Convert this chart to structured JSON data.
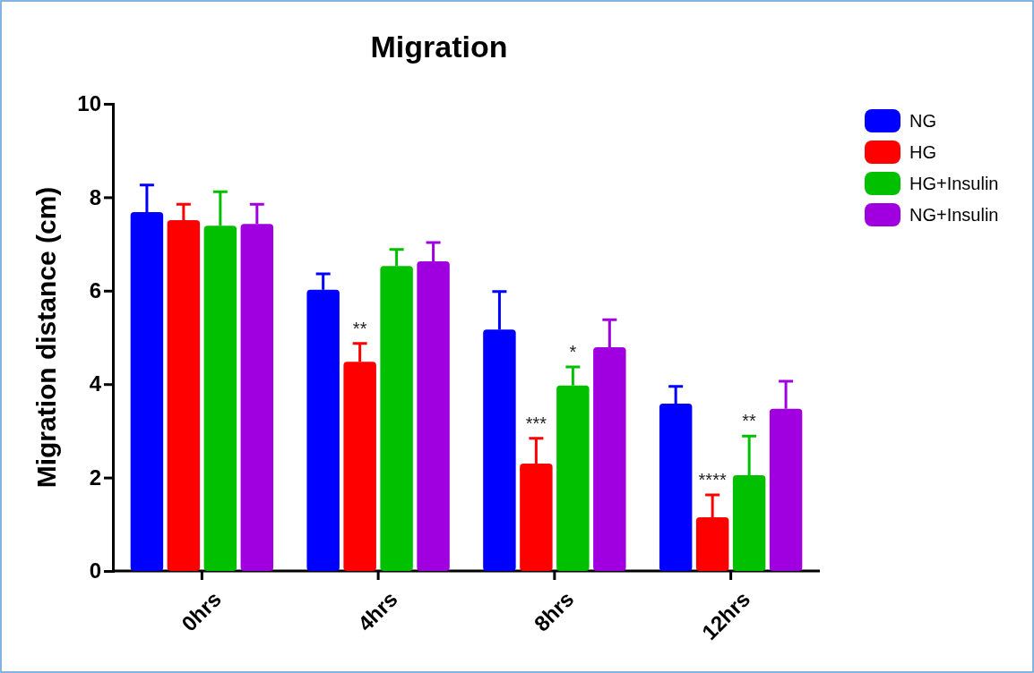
{
  "chart_data": {
    "type": "bar",
    "title": "Migration",
    "ylabel": "Migration distance (cm)",
    "categories": [
      "0hrs",
      "4hrs",
      "8hrs",
      "12hrs"
    ],
    "series": [
      {
        "name": "NG",
        "color": "#0000ff",
        "values": [
          7.68,
          6.02,
          5.17,
          3.58
        ],
        "errors": [
          0.58,
          0.34,
          0.81,
          0.37
        ]
      },
      {
        "name": "HG",
        "color": "#ff0000",
        "values": [
          7.51,
          4.48,
          2.3,
          1.15
        ],
        "errors": [
          0.34,
          0.39,
          0.54,
          0.48
        ],
        "value_labels": [
          null,
          "**",
          "***",
          "****"
        ]
      },
      {
        "name": "HG+Insulin",
        "color": "#00c000",
        "values": [
          7.39,
          6.53,
          3.97,
          2.05
        ],
        "errors": [
          0.73,
          0.35,
          0.4,
          0.84
        ],
        "value_labels": [
          null,
          null,
          "*",
          "**"
        ]
      },
      {
        "name": "NG+Insulin",
        "color": "#a000e0",
        "values": [
          7.43,
          6.63,
          4.79,
          3.47
        ],
        "errors": [
          0.42,
          0.4,
          0.59,
          0.59
        ]
      }
    ],
    "ylim": [
      0,
      10
    ],
    "yticks": [
      0,
      2,
      4,
      6,
      8,
      10
    ],
    "grid": false,
    "legend": "right"
  }
}
